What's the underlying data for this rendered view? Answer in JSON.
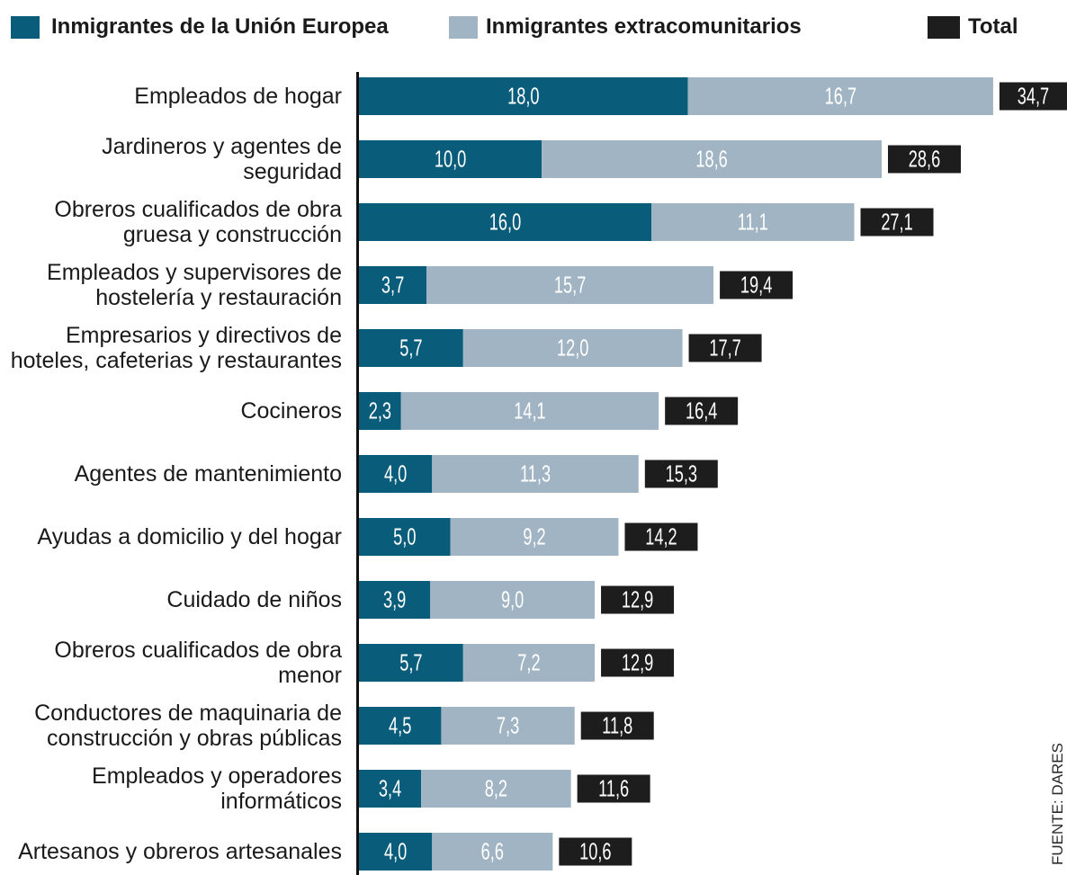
{
  "source": "FUENTE: DARES",
  "chart_data": {
    "type": "bar",
    "orientation": "horizontal",
    "stacked": true,
    "grid": false,
    "legend_position": "top",
    "xlim": [
      0,
      35
    ],
    "categories": [
      "Empleados de hogar",
      "Jardineros y agentes de\nseguridad",
      "Obreros cualificados de obra\ngruesa y construcción",
      "Empleados y supervisores de\nhostelería y restauración",
      "Empresarios y directivos de\nhoteles, cafeterias y restaurantes",
      "Cocineros",
      "Agentes de mantenimiento",
      "Ayudas a domicilio y del hogar",
      "Cuidado de niños",
      "Obreros cualificados de obra\nmenor",
      "Conductores de maquinaria de\nconstrucción y obras públicas",
      "Empleados y operadores\ninformáticos",
      "Artesanos y obreros artesanales"
    ],
    "series": [
      {
        "name": "Inmigrantes de la Unión Europea",
        "color": "#0a5c7b",
        "values": [
          18.0,
          10.0,
          16.0,
          3.7,
          5.7,
          2.3,
          4.0,
          5.0,
          3.9,
          5.7,
          4.5,
          3.4,
          4.0
        ],
        "labels": [
          "18,0",
          "10,0",
          "16,0",
          "3,7",
          "5,7",
          "2,3",
          "4,0",
          "5,0",
          "3,9",
          "5,7",
          "4,5",
          "3,4",
          "4,0"
        ]
      },
      {
        "name": "Inmigrantes extracomunitarios",
        "color": "#a0b4c3",
        "values": [
          16.7,
          18.6,
          11.1,
          15.7,
          12.0,
          14.1,
          11.3,
          9.2,
          9.0,
          7.2,
          7.3,
          8.2,
          6.6
        ],
        "labels": [
          "16,7",
          "18,6",
          "11,1",
          "15,7",
          "12,0",
          "14,1",
          "11,3",
          "9,2",
          "9,0",
          "7,2",
          "7,3",
          "8,2",
          "6,6"
        ]
      }
    ],
    "totals": {
      "name": "Total",
      "color": "#1d1d1d",
      "values": [
        34.7,
        28.6,
        27.1,
        19.4,
        17.7,
        16.4,
        15.3,
        14.2,
        12.9,
        12.9,
        11.8,
        11.6,
        10.6
      ],
      "labels": [
        "34,7",
        "28,6",
        "27,1",
        "19,4",
        "17,7",
        "16,4",
        "15,3",
        "14,2",
        "12,9",
        "12,9",
        "11,8",
        "11,6",
        "10,6"
      ]
    }
  }
}
